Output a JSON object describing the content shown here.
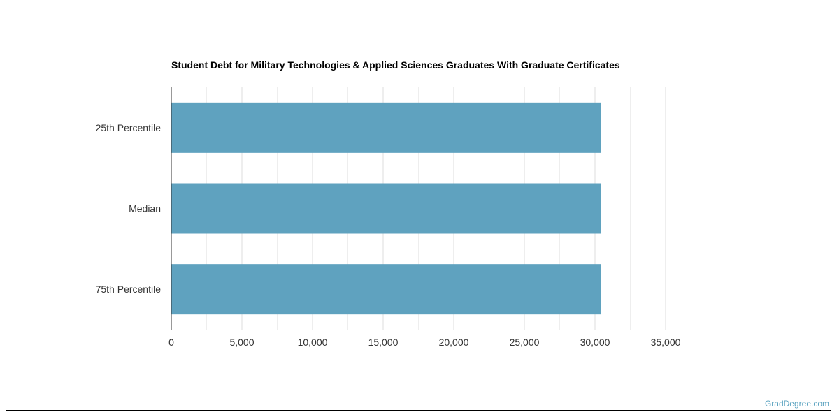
{
  "chart_data": {
    "type": "bar",
    "orientation": "horizontal",
    "title": "Student Debt for Military Technologies & Applied Sciences Graduates With Graduate Certificates",
    "categories": [
      "25th Percentile",
      "Median",
      "75th Percentile"
    ],
    "values": [
      30400,
      30400,
      30400
    ],
    "xlim": [
      0,
      35000
    ],
    "xticks": [
      0,
      5000,
      10000,
      15000,
      20000,
      25000,
      30000,
      35000
    ],
    "xtick_labels": [
      "0",
      "5,000",
      "10,000",
      "15,000",
      "20,000",
      "25,000",
      "30,000",
      "35,000"
    ],
    "grid": true,
    "bar_color": "#5fa2bf",
    "xlabel": "",
    "ylabel": ""
  },
  "footer": {
    "source": "GradDegree.com"
  }
}
